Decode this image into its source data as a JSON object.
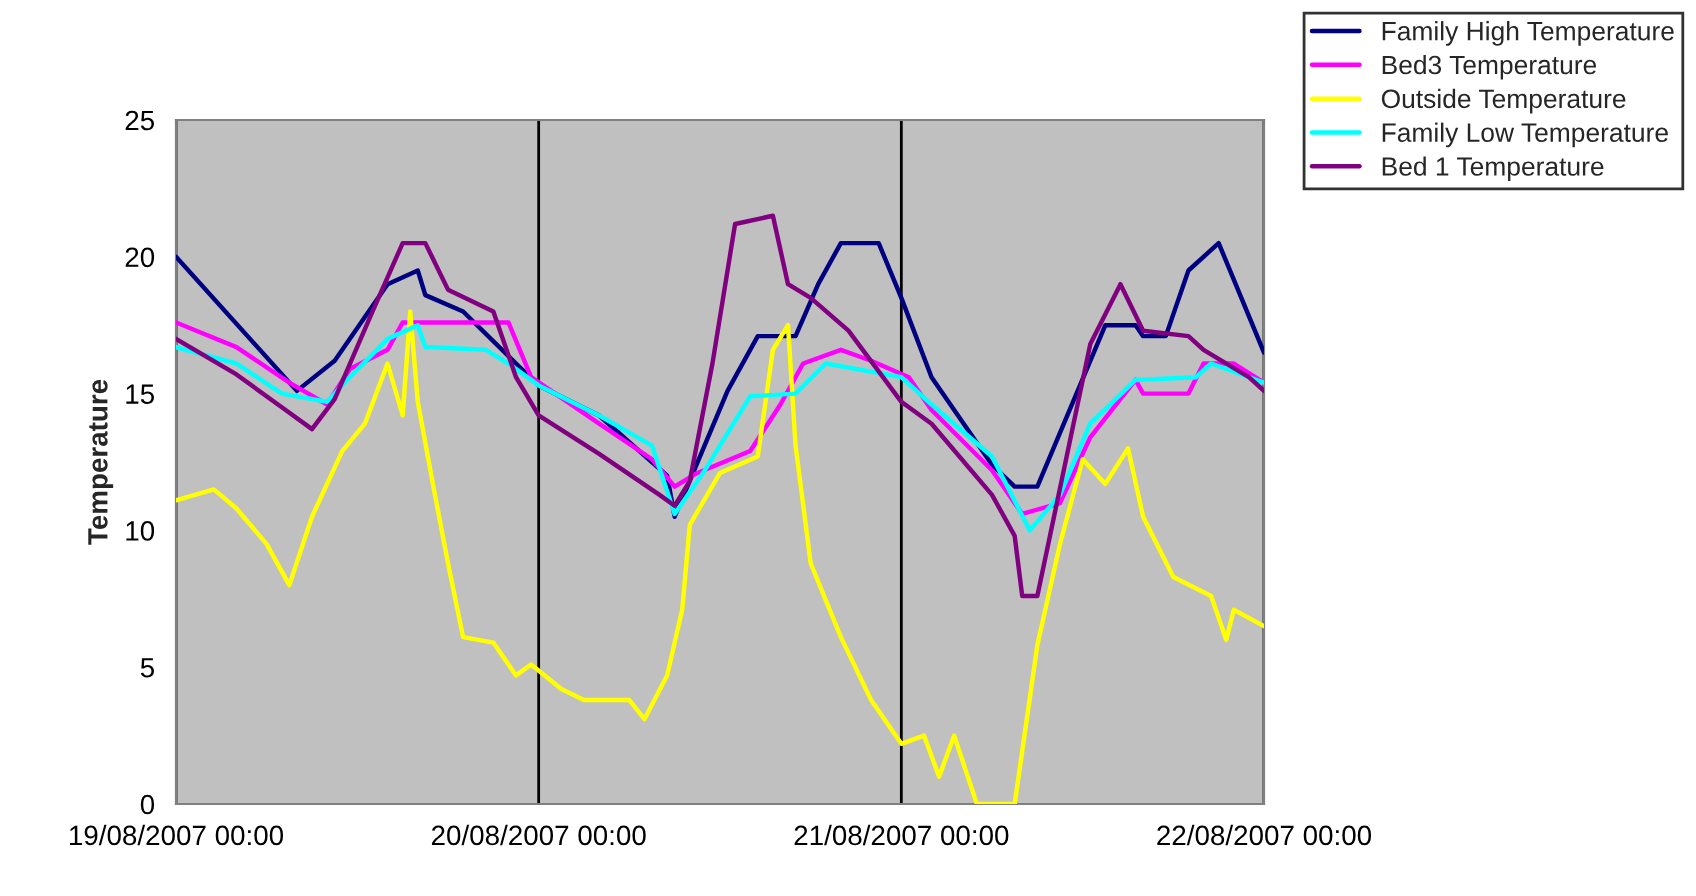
{
  "chart_data": {
    "type": "line",
    "ylabel": "Temperature",
    "xlim": [
      "2007-08-19T00:00",
      "2007-08-22T00:00"
    ],
    "xticks": [
      {
        "value": "2007-08-19T00:00",
        "label": "19/08/2007 00:00"
      },
      {
        "value": "2007-08-20T00:00",
        "label": "20/08/2007 00:00"
      },
      {
        "value": "2007-08-21T00:00",
        "label": "21/08/2007 00:00"
      },
      {
        "value": "2007-08-22T00:00",
        "label": "22/08/2007 00:00"
      }
    ],
    "ylim": [
      0,
      25
    ],
    "yticks": [
      0,
      5,
      10,
      15,
      20,
      25
    ],
    "grid": "x",
    "legend": "top right",
    "marker": "none",
    "line_style": "solid",
    "series": [
      {
        "name": "Family High Temperature",
        "color": "#000080",
        "x": [
          "2007-08-19T00:00",
          "2007-08-19T08:00",
          "2007-08-19T10:30",
          "2007-08-19T14:00",
          "2007-08-19T16:00",
          "2007-08-19T16:30",
          "2007-08-19T19:00",
          "2007-08-19T22:30",
          "2007-08-20T00:00",
          "2007-08-20T04:00",
          "2007-08-20T08:30",
          "2007-08-20T09:00",
          "2007-08-20T12:30",
          "2007-08-20T14:30",
          "2007-08-20T17:00",
          "2007-08-20T18:30",
          "2007-08-20T20:00",
          "2007-08-20T22:30",
          "2007-08-21T00:00",
          "2007-08-21T02:00",
          "2007-08-21T06:00",
          "2007-08-21T07:30",
          "2007-08-21T09:00",
          "2007-08-21T13:30",
          "2007-08-21T15:30",
          "2007-08-21T16:00",
          "2007-08-21T17:30",
          "2007-08-21T19:00",
          "2007-08-21T21:00",
          "2007-08-22T00:00"
        ],
        "values": [
          20.0,
          15.1,
          16.2,
          19.0,
          19.5,
          18.6,
          18.0,
          16.1,
          15.3,
          14.2,
          12.0,
          10.5,
          15.1,
          17.1,
          17.1,
          19.0,
          20.5,
          20.5,
          18.5,
          15.6,
          12.4,
          11.6,
          11.6,
          17.5,
          17.5,
          17.1,
          17.1,
          19.5,
          20.5,
          16.5
        ]
      },
      {
        "name": "Bed3 Temperature",
        "color": "#ff00ff",
        "x": [
          "2007-08-19T00:00",
          "2007-08-19T04:00",
          "2007-08-19T07:30",
          "2007-08-19T10:00",
          "2007-08-19T11:30",
          "2007-08-19T14:00",
          "2007-08-19T15:00",
          "2007-08-19T22:00",
          "2007-08-19T23:30",
          "2007-08-20T04:00",
          "2007-08-20T07:30",
          "2007-08-20T09:00",
          "2007-08-20T10:30",
          "2007-08-20T14:00",
          "2007-08-20T16:00",
          "2007-08-20T17:30",
          "2007-08-20T20:00",
          "2007-08-20T22:00",
          "2007-08-21T00:30",
          "2007-08-21T02:00",
          "2007-08-21T06:00",
          "2007-08-21T08:00",
          "2007-08-21T10:30",
          "2007-08-21T12:30",
          "2007-08-21T15:30",
          "2007-08-21T16:00",
          "2007-08-21T19:00",
          "2007-08-21T20:00",
          "2007-08-21T22:00",
          "2007-08-22T00:00"
        ],
        "values": [
          17.6,
          16.7,
          15.4,
          14.6,
          15.9,
          16.6,
          17.6,
          17.6,
          15.6,
          13.9,
          12.6,
          11.6,
          12.1,
          12.9,
          14.6,
          16.1,
          16.6,
          16.2,
          15.6,
          14.4,
          12.2,
          10.6,
          11.0,
          13.4,
          15.5,
          15.0,
          15.0,
          16.1,
          16.1,
          15.4
        ]
      },
      {
        "name": "Outside Temperature",
        "color": "#ffff00",
        "x": [
          "2007-08-19T00:00",
          "2007-08-19T02:30",
          "2007-08-19T04:00",
          "2007-08-19T06:00",
          "2007-08-19T07:30",
          "2007-08-19T09:00",
          "2007-08-19T11:00",
          "2007-08-19T12:30",
          "2007-08-19T14:00",
          "2007-08-19T15:00",
          "2007-08-19T15:30",
          "2007-08-19T16:00",
          "2007-08-19T17:00",
          "2007-08-19T18:00",
          "2007-08-19T19:00",
          "2007-08-19T21:00",
          "2007-08-19T22:30",
          "2007-08-19T23:30",
          "2007-08-20T01:30",
          "2007-08-20T03:00",
          "2007-08-20T06:00",
          "2007-08-20T07:00",
          "2007-08-20T08:30",
          "2007-08-20T09:30",
          "2007-08-20T10:00",
          "2007-08-20T12:00",
          "2007-08-20T14:30",
          "2007-08-20T15:30",
          "2007-08-20T16:30",
          "2007-08-20T17:00",
          "2007-08-20T18:00",
          "2007-08-20T20:00",
          "2007-08-20T22:00",
          "2007-08-21T00:00",
          "2007-08-21T01:30",
          "2007-08-21T02:30",
          "2007-08-21T03:30",
          "2007-08-21T05:00",
          "2007-08-21T07:30",
          "2007-08-21T09:00",
          "2007-08-21T10:30",
          "2007-08-21T12:00",
          "2007-08-21T13:30",
          "2007-08-21T15:00",
          "2007-08-21T16:00",
          "2007-08-21T18:00",
          "2007-08-21T20:30",
          "2007-08-21T21:30",
          "2007-08-21T22:00",
          "2007-08-22T00:00"
        ],
        "values": [
          11.1,
          11.5,
          10.8,
          9.5,
          8.0,
          10.5,
          12.9,
          13.9,
          16.1,
          14.2,
          18.0,
          14.7,
          11.7,
          8.8,
          6.1,
          5.9,
          4.7,
          5.1,
          4.2,
          3.8,
          3.8,
          3.1,
          4.7,
          7.1,
          10.2,
          12.1,
          12.7,
          16.6,
          17.5,
          13.1,
          8.8,
          6.1,
          3.8,
          2.2,
          2.5,
          1.0,
          2.5,
          0,
          0,
          5.8,
          9.5,
          12.6,
          11.7,
          13.0,
          10.5,
          8.3,
          7.6,
          6.0,
          7.1,
          6.5
        ]
      },
      {
        "name": "Family Low Temperature",
        "color": "#00ffff",
        "x": [
          "2007-08-19T00:00",
          "2007-08-19T04:00",
          "2007-08-19T07:00",
          "2007-08-19T10:00",
          "2007-08-19T11:30",
          "2007-08-19T14:00",
          "2007-08-19T16:00",
          "2007-08-19T16:30",
          "2007-08-19T20:30",
          "2007-08-19T22:00",
          "2007-08-20T00:00",
          "2007-08-20T04:00",
          "2007-08-20T07:30",
          "2007-08-20T09:00",
          "2007-08-20T11:00",
          "2007-08-20T14:00",
          "2007-08-20T17:00",
          "2007-08-20T19:00",
          "2007-08-21T00:00",
          "2007-08-21T02:00",
          "2007-08-21T06:00",
          "2007-08-21T08:30",
          "2007-08-21T10:30",
          "2007-08-21T12:30",
          "2007-08-21T15:30",
          "2007-08-21T19:30",
          "2007-08-21T20:30",
          "2007-08-22T00:00"
        ],
        "values": [
          16.7,
          16.1,
          15.0,
          14.7,
          15.6,
          17.0,
          17.5,
          16.7,
          16.6,
          16.1,
          15.3,
          14.2,
          13.1,
          10.6,
          12.2,
          14.9,
          15.0,
          16.1,
          15.6,
          14.6,
          12.7,
          10.0,
          11.3,
          13.9,
          15.5,
          15.6,
          16.1,
          15.4
        ]
      },
      {
        "name": "Bed 1 Temperature",
        "color": "#800080",
        "x": [
          "2007-08-19T00:00",
          "2007-08-19T04:00",
          "2007-08-19T07:00",
          "2007-08-19T09:00",
          "2007-08-19T10:30",
          "2007-08-19T13:00",
          "2007-08-19T15:00",
          "2007-08-19T16:30",
          "2007-08-19T18:00",
          "2007-08-19T21:00",
          "2007-08-19T22:30",
          "2007-08-20T00:00",
          "2007-08-20T04:00",
          "2007-08-20T08:00",
          "2007-08-20T09:00",
          "2007-08-20T10:00",
          "2007-08-20T11:30",
          "2007-08-20T13:00",
          "2007-08-20T15:30",
          "2007-08-20T16:30",
          "2007-08-20T18:00",
          "2007-08-20T20:30",
          "2007-08-21T00:00",
          "2007-08-21T02:00",
          "2007-08-21T06:00",
          "2007-08-21T07:30",
          "2007-08-21T08:00",
          "2007-08-21T09:00",
          "2007-08-21T12:30",
          "2007-08-21T14:30",
          "2007-08-21T16:00",
          "2007-08-21T19:00",
          "2007-08-21T20:00",
          "2007-08-21T23:00",
          "2007-08-22T00:00"
        ],
        "values": [
          17.0,
          15.7,
          14.5,
          13.7,
          14.8,
          18.0,
          20.5,
          20.5,
          18.8,
          18.0,
          15.6,
          14.2,
          12.8,
          11.3,
          10.9,
          11.8,
          16.1,
          21.2,
          21.5,
          19.0,
          18.5,
          17.3,
          14.7,
          13.9,
          11.3,
          9.8,
          7.6,
          7.6,
          16.8,
          19.0,
          17.3,
          17.1,
          16.6,
          15.6,
          15.1
        ]
      }
    ]
  }
}
